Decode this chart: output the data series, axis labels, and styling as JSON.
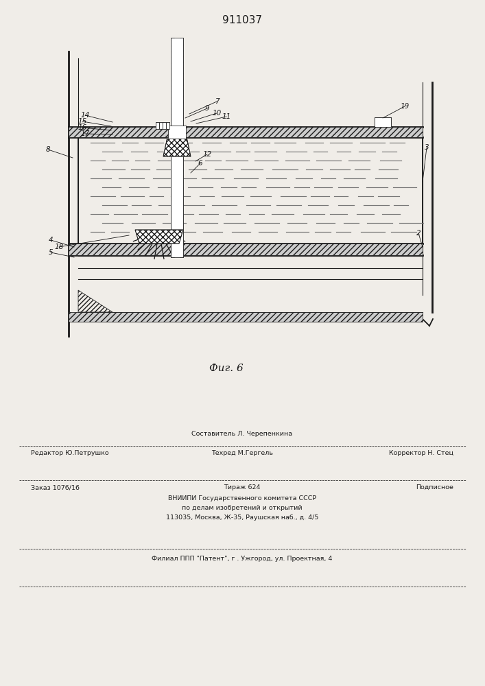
{
  "title": "911037",
  "fig_label": "Фиг. 6",
  "bg_color": "#f0ede8",
  "line_color": "#1a1a1a",
  "footer": {
    "row1_center": "Составитель Л. Черепенкина",
    "row2_left": "Редактор Ю.Петрушко",
    "row2_center": "Техред М.Гергель",
    "row2_right": "Корректор Н. Стец",
    "row3_left": "Заказ 1076/16",
    "row3_center": "Тираж 624",
    "row3_right": "Подписное",
    "row4": "ВНИИПИ Государственного комитета СССР",
    "row5": "по делам изобретений и открытий",
    "row6": "113035, Москва, Ж-35, Раушская наб., д. 4/5",
    "row7": "Филиал ППП \"Патент\", г . Ужгород, ул. Проектная, 4"
  }
}
